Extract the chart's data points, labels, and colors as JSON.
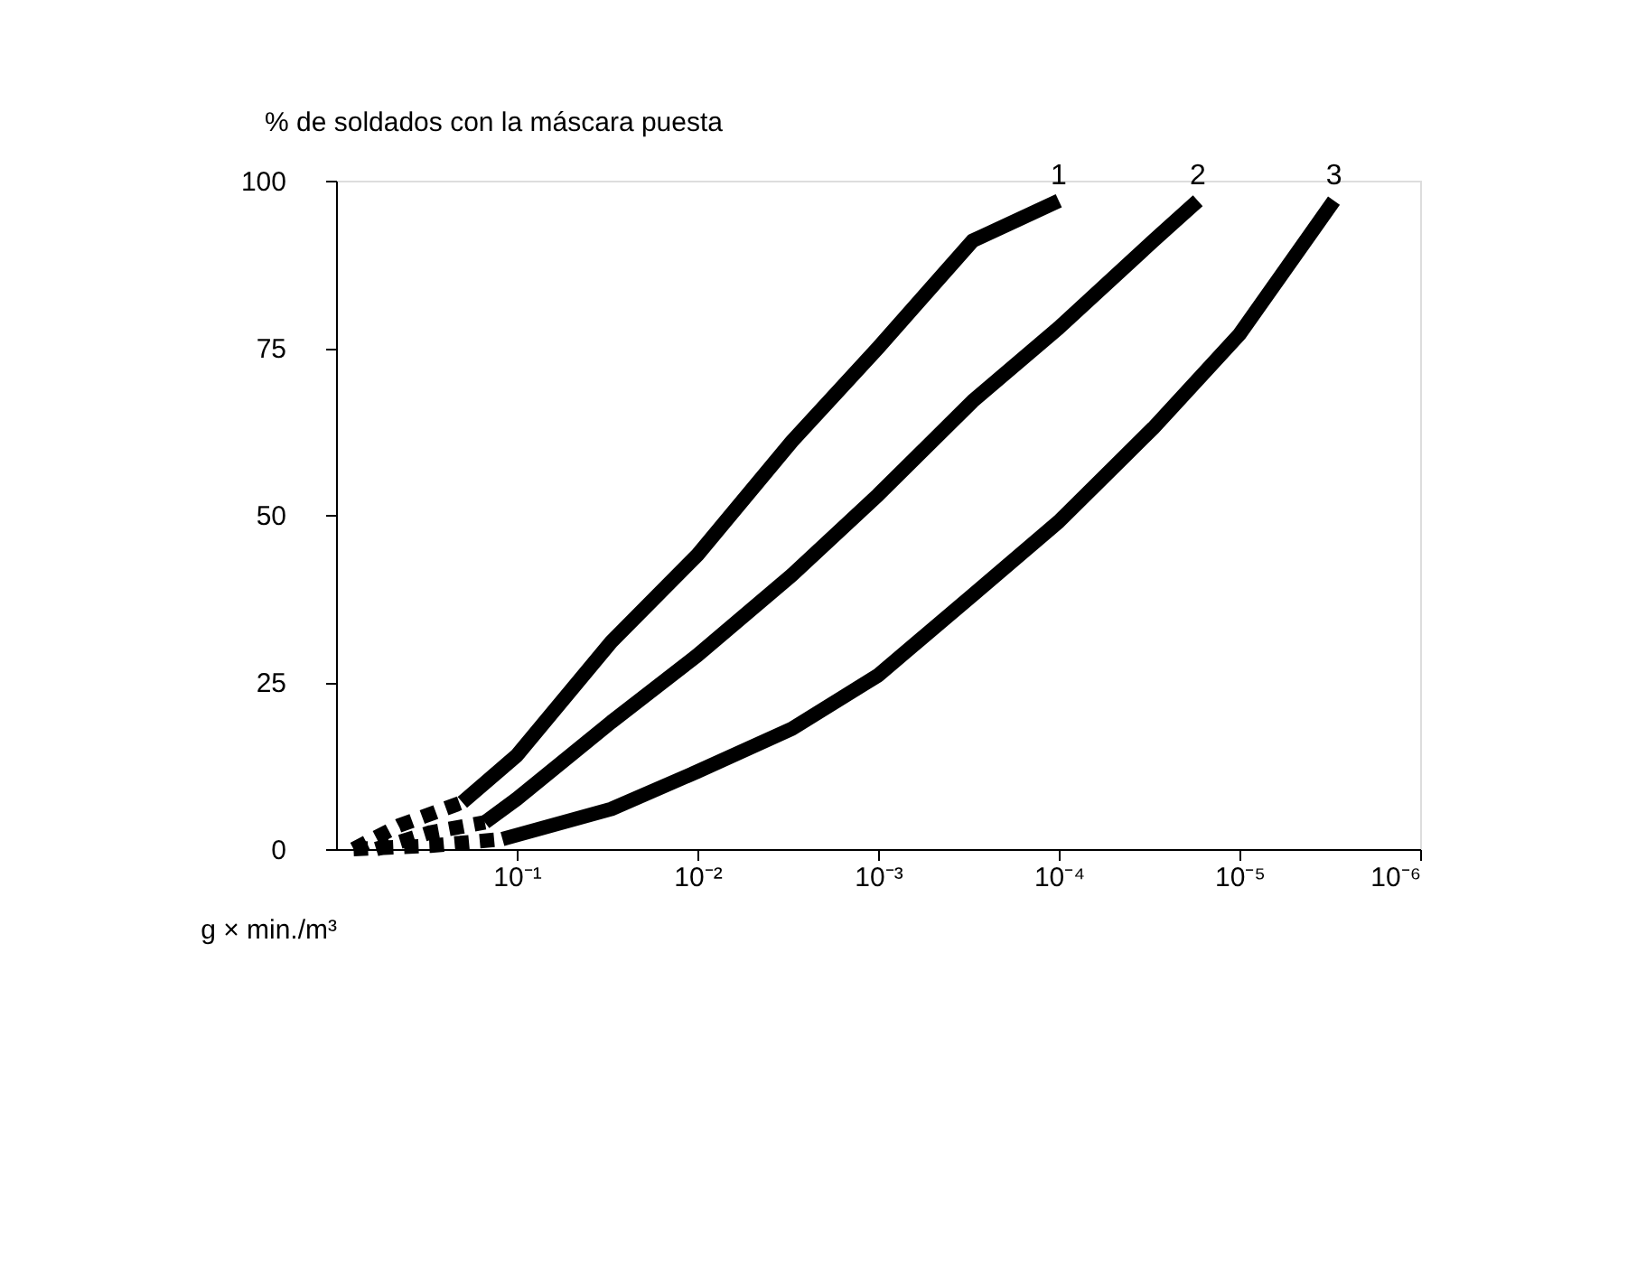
{
  "chart_data": {
    "type": "line",
    "ylabel": "% de soldados con la máscara puesta",
    "xlabel": "g × min./m³",
    "log": "x",
    "xlim": [
      1,
      1e-06
    ],
    "ylim": [
      0,
      100
    ],
    "yticks": [
      0,
      25,
      50,
      75,
      100
    ],
    "xticks": [
      {
        "value": 0.1,
        "label": "10⁻¹"
      },
      {
        "value": 0.01,
        "label": "10⁻²"
      },
      {
        "value": 0.001,
        "label": "10⁻³"
      },
      {
        "value": 0.0001,
        "label": "10⁻⁴"
      },
      {
        "value": 1e-05,
        "label": "10⁻⁵"
      },
      {
        "value": 1e-06,
        "label": "10⁻⁶"
      }
    ],
    "marker": "none",
    "series": [
      {
        "color": "#000000",
        "line_style": "dashed",
        "x": [
          0.8,
          0.45,
          0.2
        ],
        "values": [
          0,
          3.5,
          7
        ]
      },
      {
        "name": "1",
        "color": "#000000",
        "line_style": "solid",
        "x": [
          0.2,
          0.1,
          0.03,
          0.01,
          0.003,
          0.001,
          0.0003,
          0.0001
        ],
        "values": [
          7,
          14,
          31,
          44,
          61,
          75,
          91,
          97
        ]
      },
      {
        "color": "#000000",
        "line_style": "dashed",
        "x": [
          0.6,
          0.3,
          0.15
        ],
        "values": [
          0,
          2.5,
          4
        ]
      },
      {
        "name": "2",
        "color": "#000000",
        "line_style": "solid",
        "x": [
          0.15,
          0.1,
          0.03,
          0.01,
          0.003,
          0.001,
          0.0003,
          0.0001,
          3e-05,
          1.7e-05
        ],
        "values": [
          4,
          7.5,
          19,
          29,
          41,
          53,
          67,
          78,
          91,
          97
        ]
      },
      {
        "color": "#000000",
        "line_style": "dashed",
        "x": [
          0.8,
          0.3,
          0.12
        ],
        "values": [
          0,
          0.5,
          1.5
        ]
      },
      {
        "name": "3",
        "color": "#000000",
        "line_style": "solid",
        "x": [
          0.12,
          0.03,
          0.01,
          0.003,
          0.001,
          0.0003,
          0.0001,
          3e-05,
          1e-05,
          3e-06
        ],
        "values": [
          1.5,
          6,
          11.6,
          18,
          26,
          38,
          49,
          63,
          77,
          97
        ]
      }
    ]
  }
}
